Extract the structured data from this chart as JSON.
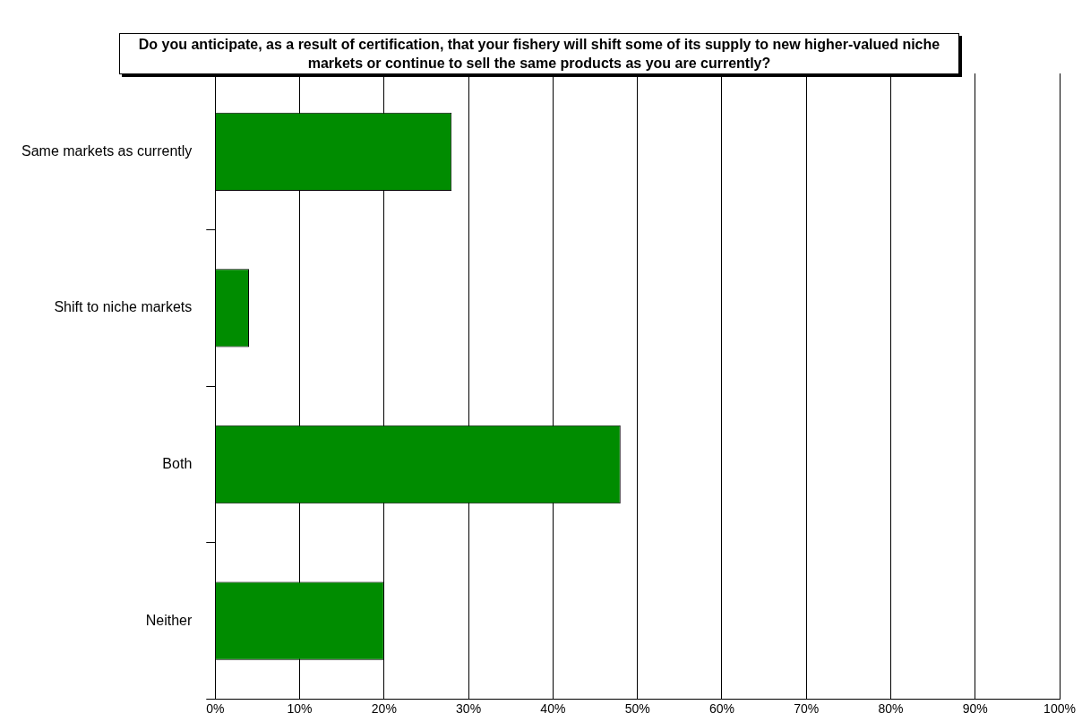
{
  "chart_data": {
    "type": "bar",
    "orientation": "horizontal",
    "title": "Do you anticipate, as a result of certification, that your fishery will shift some of its supply to new higher-valued niche markets or continue to sell the same products as you are currently?",
    "categories": [
      "Same markets as currently",
      "Shift to niche markets",
      "Both",
      "Neither"
    ],
    "values": [
      28,
      4,
      48,
      20
    ],
    "color": "#008c00",
    "xlim": [
      0,
      100
    ],
    "xticks": [
      {
        "value": 0,
        "label": "0%"
      },
      {
        "value": 10,
        "label": "10%"
      },
      {
        "value": 20,
        "label": "20%"
      },
      {
        "value": 30,
        "label": "30%"
      },
      {
        "value": 40,
        "label": "40%"
      },
      {
        "value": 50,
        "label": "50%"
      },
      {
        "value": 60,
        "label": "60%"
      },
      {
        "value": 70,
        "label": "70%"
      },
      {
        "value": 80,
        "label": "80%"
      },
      {
        "value": 90,
        "label": "90%"
      },
      {
        "value": 100,
        "label": "100%"
      }
    ],
    "grid": "x",
    "legend": false
  }
}
